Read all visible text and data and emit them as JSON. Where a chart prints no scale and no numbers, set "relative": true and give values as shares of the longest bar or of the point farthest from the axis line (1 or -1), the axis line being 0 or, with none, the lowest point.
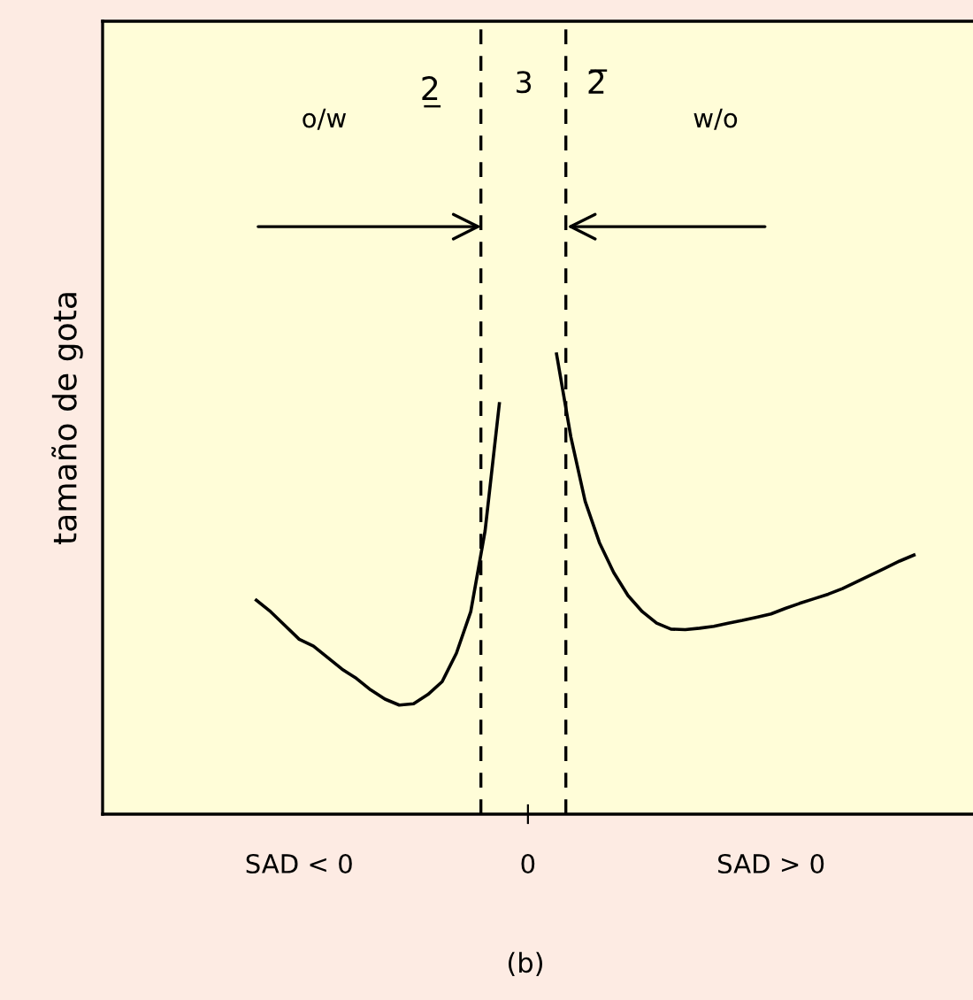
{
  "chart_data": {
    "type": "line",
    "relative": true,
    "ylabel": "tamaño de gota",
    "categories": [
      null,
      null,
      null,
      null,
      null,
      null,
      null,
      null,
      null,
      null,
      null,
      null,
      null,
      "SAD < 0",
      null,
      null,
      null,
      null,
      null,
      null,
      null,
      null,
      null,
      null,
      null,
      null,
      null,
      null,
      null,
      "0",
      null,
      null,
      null,
      null,
      null,
      null,
      null,
      null,
      null,
      null,
      null,
      null,
      null,
      null,
      null,
      null,
      "SAD > 0",
      null,
      null,
      null,
      null,
      null,
      null,
      null,
      null,
      null,
      null,
      null,
      null,
      null,
      null
    ],
    "series": [
      {
        "color": "#000000",
        "values": [
          null,
          null,
          null,
          null,
          null,
          null,
          null,
          null,
          null,
          null,
          0.465,
          0.44,
          0.41,
          0.38,
          0.365,
          0.34,
          0.315,
          0.295,
          0.27,
          0.25,
          0.237,
          0.24,
          0.26,
          0.288,
          0.35,
          0.44,
          0.615,
          0.892,
          null,
          null,
          null,
          null,
          null,
          null,
          null,
          null,
          null,
          null,
          null,
          null,
          null,
          null,
          null,
          null,
          null,
          null,
          null,
          null,
          null,
          null,
          null,
          null,
          null,
          null,
          null,
          null,
          null,
          null,
          null,
          null,
          null
        ]
      },
      {
        "color": "#000000",
        "values": [
          null,
          null,
          null,
          null,
          null,
          null,
          null,
          null,
          null,
          null,
          null,
          null,
          null,
          null,
          null,
          null,
          null,
          null,
          null,
          null,
          null,
          null,
          null,
          null,
          null,
          null,
          null,
          null,
          null,
          null,
          null,
          1.0,
          0.82,
          0.68,
          0.59,
          0.525,
          0.475,
          0.44,
          0.415,
          0.402,
          0.401,
          0.404,
          0.408,
          0.415,
          0.421,
          0.428,
          0.435,
          0.447,
          0.458,
          0.468,
          0.478,
          0.49,
          0.505,
          0.52,
          0.535,
          0.55,
          0.563,
          null,
          null,
          null,
          null
        ]
      }
    ],
    "annotations": [
      "2̲",
      "3",
      "2̅",
      "o/w",
      "w/o",
      "(b)"
    ],
    "grid": false,
    "legend": false,
    "marker": "none",
    "line_style": "solid"
  }
}
